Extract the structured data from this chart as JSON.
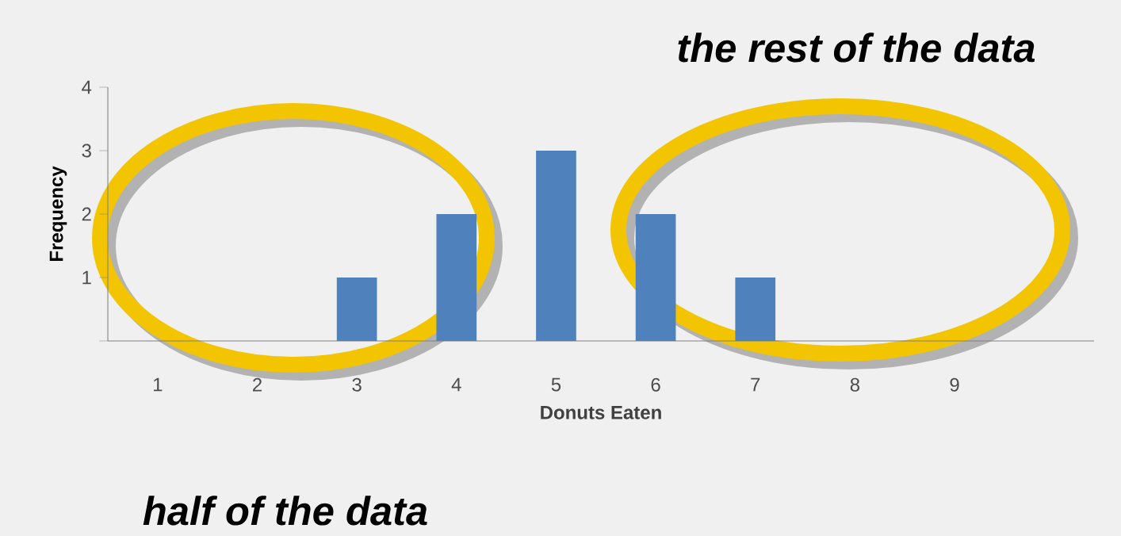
{
  "chart_data": {
    "type": "bar",
    "categories": [
      "1",
      "2",
      "3",
      "4",
      "5",
      "6",
      "7",
      "8",
      "9"
    ],
    "values": [
      0,
      0,
      1,
      2,
      3,
      2,
      1,
      0,
      0
    ],
    "color": "#4f81bd",
    "xlabel": "Donuts Eaten",
    "ylabel": "Frequency",
    "ylim": [
      0,
      4
    ],
    "yticks": [
      {
        "value": 0,
        "label": null
      },
      1,
      2,
      3,
      4
    ],
    "annotations": [
      "the rest of the data",
      "half of the data"
    ]
  }
}
